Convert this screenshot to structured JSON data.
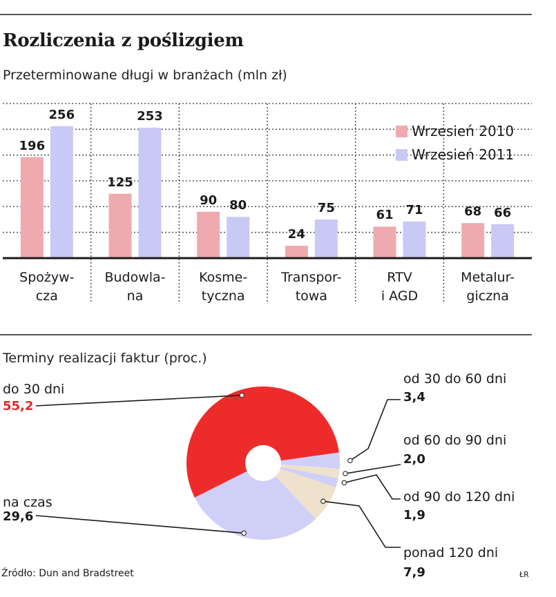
{
  "title": "Rozliczenia z poślizgiem",
  "subtitle": "Przeterminowane długi w branżach (mln zł)",
  "source": "Źródło: Dun and Bradstreet",
  "signature": "ŁR",
  "colors": {
    "series_2010": "#efaaaf",
    "series_2011": "#c9c9f6",
    "pie_red": "#ee2b2b",
    "pie_blue": "#cfcff7",
    "pie_beige": "#efe2cc"
  },
  "chart_data": [
    {
      "type": "bar",
      "categories": [
        "Spożyw-\ncza",
        "Budowla-\nna",
        "Kosme-\ntyczna",
        "Transpor-\ntowa",
        "RTV\ni AGD",
        "Metalur-\ngiczna"
      ],
      "series": [
        {
          "name": "Wrzesień 2010",
          "values": [
            196,
            125,
            90,
            24,
            61,
            68
          ]
        },
        {
          "name": "Wrzesień 2011",
          "values": [
            256,
            253,
            80,
            75,
            71,
            66
          ]
        }
      ],
      "ylim": [
        0,
        300
      ],
      "grid": true,
      "legend_position": "top-right"
    },
    {
      "type": "pie",
      "title": "Terminy realizacji faktur (proc.)",
      "slices": [
        {
          "label": "od 30 do 60 dni",
          "value": 3.4,
          "display": "3,4"
        },
        {
          "label": "od 60 do 90 dni",
          "value": 2.0,
          "display": "2,0"
        },
        {
          "label": "od 90 do 120 dni",
          "value": 1.9,
          "display": "1,9"
        },
        {
          "label": "ponad 120 dni",
          "value": 7.9,
          "display": "7,9"
        },
        {
          "label": "na czas",
          "value": 29.6,
          "display": "29,6"
        },
        {
          "label": "do 30 dni",
          "value": 55.2,
          "display": "55,2"
        }
      ]
    }
  ]
}
